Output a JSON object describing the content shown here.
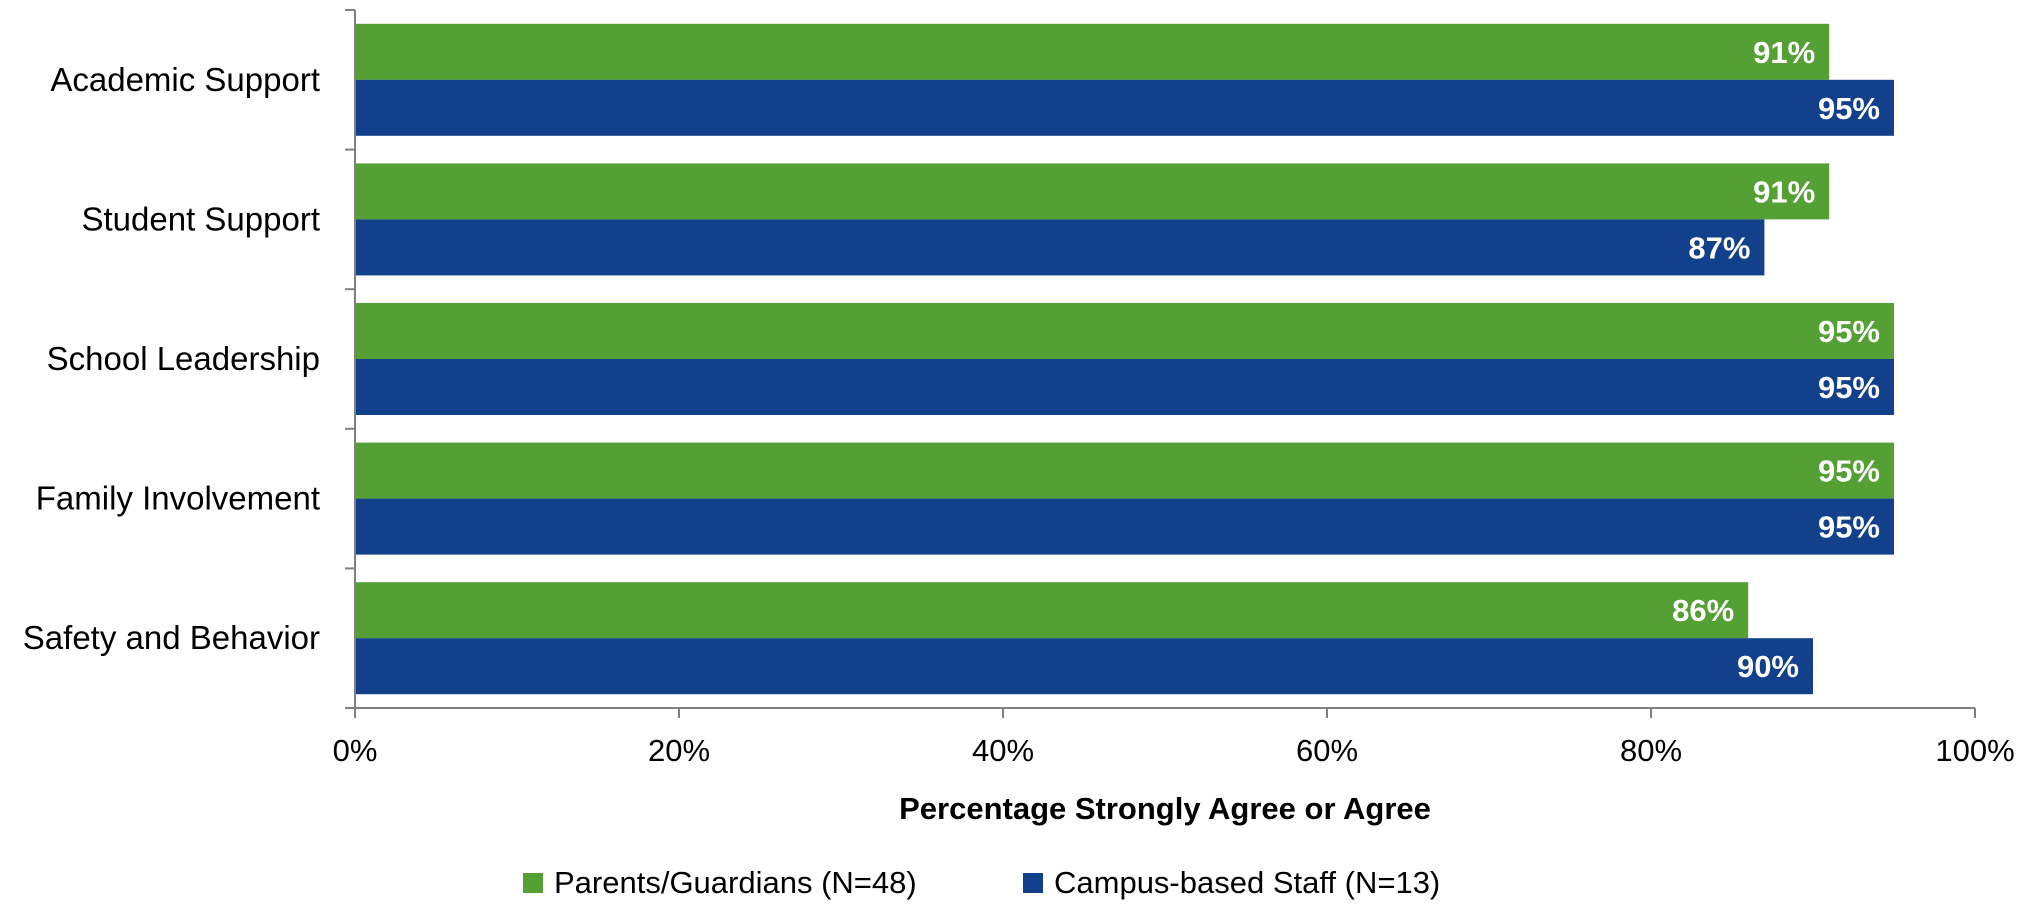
{
  "chart_data": {
    "type": "bar",
    "orientation": "horizontal",
    "categories": [
      "Academic Support",
      "Student Support",
      "School Leadership",
      "Family Involvement",
      "Safety and Behavior"
    ],
    "series": [
      {
        "name": "Parents/Guardians (N=48)",
        "values": [
          91,
          91,
          95,
          95,
          86
        ],
        "labels": [
          "91%",
          "91%",
          "95%",
          "95%",
          "86%"
        ],
        "color": "#55a035"
      },
      {
        "name": "Campus-based Staff (N=13)",
        "values": [
          95,
          87,
          95,
          95,
          90
        ],
        "labels": [
          "95%",
          "87%",
          "95%",
          "95%",
          "90%"
        ],
        "color": "#13408a"
      }
    ],
    "xlabel": "Percentage Strongly Agree or Agree",
    "ylabel": "",
    "xlim": [
      0,
      100
    ],
    "ticks": [
      0,
      20,
      40,
      60,
      80,
      100
    ],
    "tick_labels": [
      "0%",
      "20%",
      "40%",
      "60%",
      "80%",
      "100%"
    ],
    "grid": false,
    "legend_position": "bottom"
  }
}
